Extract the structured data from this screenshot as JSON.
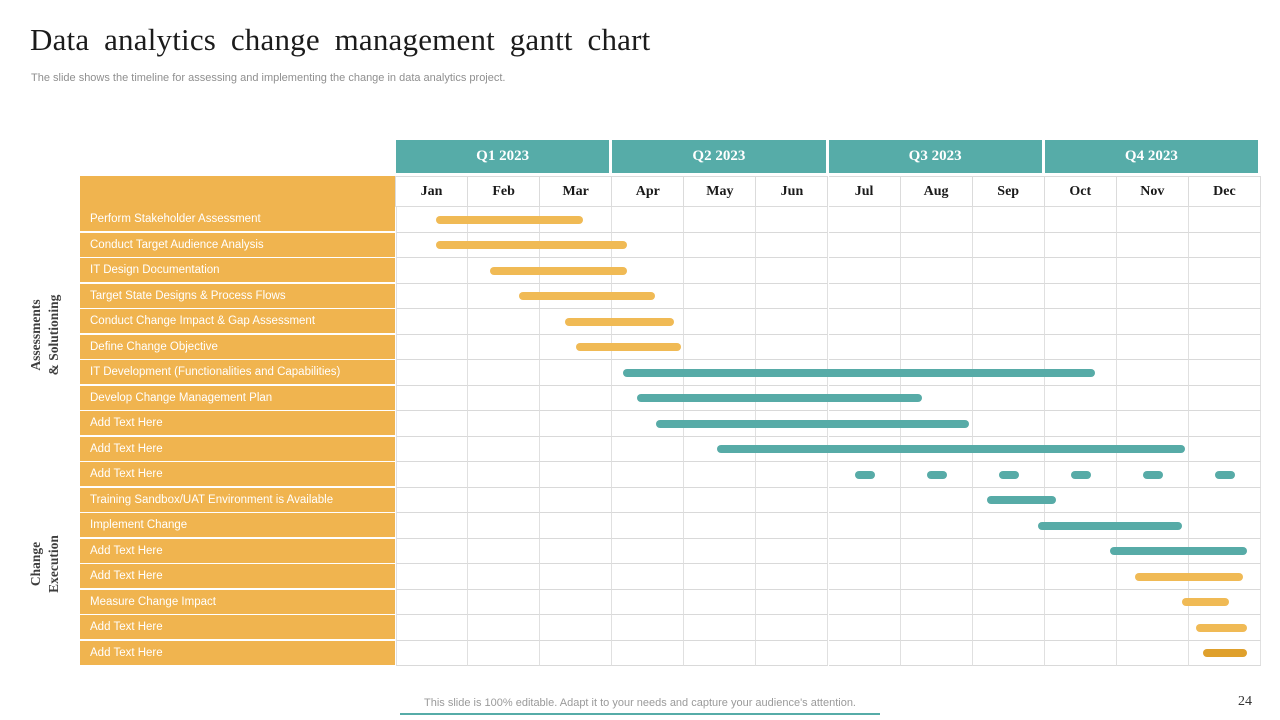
{
  "slide": {
    "title": "Data analytics change management gantt chart",
    "subtitle": "The slide shows the timeline for assessing and implementing the change in data analytics project.",
    "footer": "This slide is 100% editable. Adapt it to your needs and capture your audience's attention.",
    "page_number": "24"
  },
  "colors": {
    "header_teal": "#56aca8",
    "bar_teal": "#57aba7",
    "bar_yellow": "#f0ba55",
    "bar_dark_orange": "#dfa02c",
    "label_orange": "#f0b44f",
    "grid_line": "#d9d9d9",
    "footer_line_teal": "#56aca8"
  },
  "chart_data": {
    "type": "gantt",
    "title": "Data analytics change management gantt chart",
    "x_axis": {
      "unit": "months",
      "range_months": [
        0,
        12
      ],
      "quarters": [
        "Q1 2023",
        "Q2 2023",
        "Q3 2023",
        "Q4 2023"
      ],
      "months": [
        "Jan",
        "Feb",
        "Mar",
        "Apr",
        "May",
        "Jun",
        "Jul",
        "Aug",
        "Sep",
        "Oct",
        "Nov",
        "Dec"
      ]
    },
    "legend": "none",
    "grid": "on",
    "groups": [
      {
        "label": "Assessments & Solutioning",
        "lines": [
          "Assessments",
          "& Solutioning"
        ],
        "task_rows": [
          1,
          10
        ]
      },
      {
        "label": "Change Execution",
        "lines": [
          "Change",
          "Execution"
        ],
        "task_rows": [
          11,
          18
        ]
      }
    ],
    "tasks": [
      {
        "label": "Perform Stakeholder Assessment",
        "start_month": 0.55,
        "end_month": 2.6,
        "color": "yellow"
      },
      {
        "label": "Conduct Target Audience Analysis",
        "start_month": 0.55,
        "end_month": 3.2,
        "color": "yellow"
      },
      {
        "label": "IT Design Documentation",
        "start_month": 1.3,
        "end_month": 3.2,
        "color": "yellow"
      },
      {
        "label": "Target State Designs & Process Flows",
        "start_month": 1.7,
        "end_month": 3.6,
        "color": "yellow"
      },
      {
        "label": "Conduct Change Impact & Gap Assessment",
        "start_month": 2.35,
        "end_month": 3.85,
        "color": "yellow"
      },
      {
        "label": "Define Change Objective",
        "start_month": 2.5,
        "end_month": 3.95,
        "color": "yellow"
      },
      {
        "label": "IT Development (Functionalities and Capabilities)",
        "start_month": 3.15,
        "end_month": 9.7,
        "color": "teal"
      },
      {
        "label": "Develop Change Management Plan",
        "start_month": 3.35,
        "end_month": 7.3,
        "color": "teal"
      },
      {
        "label": "Add Text Here",
        "start_month": 3.6,
        "end_month": 7.95,
        "color": "teal"
      },
      {
        "label": "Add Text Here",
        "start_month": 4.45,
        "end_month": 10.95,
        "color": "teal"
      },
      {
        "label": "Add Text Here",
        "milestone_months": [
          6,
          7,
          8,
          9,
          10,
          11
        ],
        "color": "teal"
      },
      {
        "label": "Training Sandbox/UAT Environment is Available",
        "start_month": 8.2,
        "end_month": 9.15,
        "color": "teal"
      },
      {
        "label": "Implement Change",
        "start_month": 8.9,
        "end_month": 10.9,
        "color": "teal"
      },
      {
        "label": "Add Text Here",
        "start_month": 9.9,
        "end_month": 11.8,
        "color": "teal"
      },
      {
        "label": "Add Text Here",
        "start_month": 10.25,
        "end_month": 11.75,
        "color": "yellow"
      },
      {
        "label": "Measure Change Impact",
        "start_month": 10.9,
        "end_month": 11.55,
        "color": "yellow"
      },
      {
        "label": "Add Text Here",
        "start_month": 11.1,
        "end_month": 11.8,
        "color": "yellow"
      },
      {
        "label": "Add Text Here",
        "start_month": 11.2,
        "end_month": 11.8,
        "color": "dark_orange"
      }
    ]
  }
}
